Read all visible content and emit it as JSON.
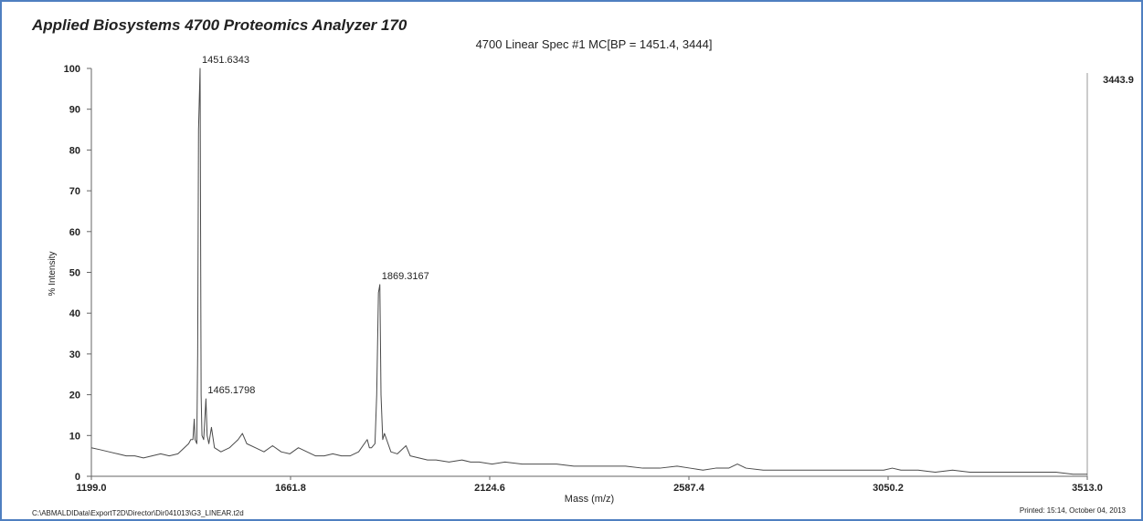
{
  "chart_data": {
    "type": "line",
    "title": "Applied Biosystems 4700 Proteomics Analyzer 170",
    "subtitle": "4700 Linear Spec #1 MC[BP = 1451.4, 3444]",
    "x_label": "Mass (m/z)",
    "y_label": "% Intensity",
    "intensity_max": 3443.9,
    "file_path": "C:\\ABMALDIData\\ExportT2D\\Director\\Dir041013\\G3_LINEAR.t2d",
    "printed": "Printed: 15:14, October 04, 2013",
    "color": "#4a4a4a",
    "xlim": [
      1199,
      3513
    ],
    "ylim": [
      0,
      100
    ],
    "xticks": [
      {
        "value": 1199,
        "label": "1199.0"
      },
      1661.8,
      2124.6,
      2587.4,
      3050.2,
      {
        "value": 3513,
        "label": "3513.0"
      }
    ],
    "yticks": [
      0,
      10,
      20,
      30,
      40,
      50,
      60,
      70,
      80,
      90,
      100
    ],
    "peaks": [
      {
        "x": 1451.6343,
        "y": 100
      },
      {
        "x": 1465.1798,
        "y": 19
      },
      {
        "x": 1869.3167,
        "y": 47
      }
    ],
    "x": [
      1199,
      1220,
      1240,
      1260,
      1280,
      1300,
      1320,
      1340,
      1360,
      1380,
      1400,
      1420,
      1425,
      1430,
      1435,
      1438,
      1440,
      1444,
      1446,
      1448,
      1451.6,
      1454,
      1456,
      1460,
      1465.2,
      1468,
      1472,
      1478,
      1485,
      1500,
      1520,
      1540,
      1550,
      1560,
      1580,
      1600,
      1620,
      1640,
      1660,
      1680,
      1700,
      1720,
      1740,
      1760,
      1780,
      1800,
      1820,
      1840,
      1845,
      1850,
      1858,
      1862,
      1866,
      1869.3,
      1872,
      1876,
      1880,
      1885,
      1895,
      1910,
      1930,
      1940,
      1960,
      1980,
      2000,
      2030,
      2060,
      2080,
      2100,
      2130,
      2160,
      2200,
      2240,
      2280,
      2320,
      2360,
      2400,
      2440,
      2480,
      2520,
      2560,
      2590,
      2620,
      2650,
      2680,
      2700,
      2720,
      2760,
      2800,
      2850,
      2900,
      2950,
      3000,
      3040,
      3060,
      3080,
      3120,
      3160,
      3200,
      3240,
      3280,
      3320,
      3360,
      3400,
      3440,
      3480,
      3513
    ],
    "values": [
      7,
      6.5,
      6,
      5.5,
      5,
      5,
      4.5,
      5,
      5.5,
      5,
      5.5,
      7.5,
      8,
      9,
      9,
      14,
      9,
      8,
      30,
      85,
      100,
      20,
      10,
      9,
      19,
      10,
      8,
      12,
      7,
      6,
      7,
      9,
      10.5,
      8,
      7,
      6,
      7.5,
      6,
      5.5,
      7,
      6,
      5,
      5,
      5.5,
      5,
      5,
      6,
      9,
      7,
      7,
      8,
      20,
      45,
      47,
      20,
      9,
      10.5,
      9,
      6,
      5.5,
      7.5,
      5,
      4.5,
      4,
      4,
      3.5,
      4,
      3.5,
      3.5,
      3,
      3.5,
      3,
      3,
      3,
      2.5,
      2.5,
      2.5,
      2.5,
      2,
      2,
      2.5,
      2,
      1.5,
      2,
      2,
      3,
      2,
      1.5,
      1.5,
      1.5,
      1.5,
      1.5,
      1.5,
      1.5,
      2,
      1.5,
      1.5,
      1,
      1.5,
      1,
      1,
      1,
      1,
      1,
      1,
      0.5,
      0.5
    ]
  }
}
